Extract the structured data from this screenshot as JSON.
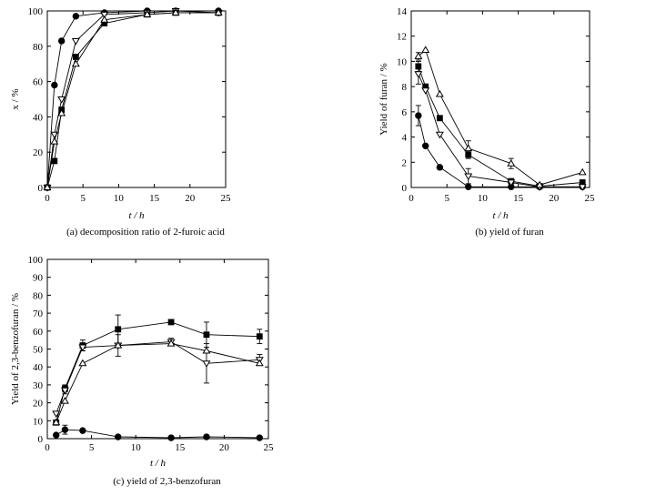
{
  "chart_data": [
    {
      "id": "a",
      "type": "line",
      "caption": "(a) decomposition ratio of 2-furoic acid",
      "xlabel": "t / h",
      "ylabel": "x / %",
      "xlim": [
        0,
        25
      ],
      "ylim": [
        0,
        100
      ],
      "xticks": [
        0,
        5,
        10,
        15,
        20,
        25
      ],
      "yticks": [
        0,
        20,
        40,
        60,
        80,
        100
      ],
      "series": [
        {
          "marker": "filled-circle",
          "x": [
            0,
            1,
            2,
            4,
            8,
            14,
            18,
            24
          ],
          "y": [
            0,
            58,
            83,
            97,
            99,
            100,
            100,
            100
          ]
        },
        {
          "marker": "open-down-triangle",
          "x": [
            0,
            1,
            2,
            4,
            8,
            14,
            18,
            24
          ],
          "y": [
            0,
            30,
            50,
            83,
            98,
            99,
            100,
            99
          ]
        },
        {
          "marker": "filled-square",
          "x": [
            0,
            1,
            2,
            4,
            8,
            14,
            18,
            24
          ],
          "y": [
            0,
            15,
            44,
            74,
            93,
            98,
            99,
            99
          ]
        },
        {
          "marker": "open-up-triangle",
          "x": [
            0,
            1,
            2,
            4,
            8,
            14,
            18,
            24
          ],
          "y": [
            0,
            26,
            42,
            70,
            95,
            98,
            99,
            99
          ]
        }
      ]
    },
    {
      "id": "b",
      "type": "line",
      "caption": "(b) yield of furan",
      "xlabel": "t / h",
      "ylabel": "Yield of furan / %",
      "xlim": [
        0,
        25
      ],
      "ylim": [
        0,
        14
      ],
      "xticks": [
        0,
        5,
        10,
        15,
        20,
        25
      ],
      "yticks": [
        0,
        2,
        4,
        6,
        8,
        10,
        12,
        14
      ],
      "series": [
        {
          "marker": "filled-circle",
          "x": [
            1,
            2,
            4,
            8,
            14,
            18,
            24
          ],
          "y": [
            5.7,
            3.3,
            1.6,
            0.05,
            0.05,
            0.05,
            0.05
          ],
          "err": [
            0.8,
            0,
            0,
            0,
            0,
            0,
            0
          ]
        },
        {
          "marker": "filled-square",
          "x": [
            1,
            2,
            4,
            8,
            14,
            18,
            24
          ],
          "y": [
            9.6,
            8.0,
            5.5,
            2.6,
            0.5,
            0.1,
            0.4
          ],
          "err": [
            0.4,
            0,
            0,
            0.3,
            0,
            0,
            0
          ]
        },
        {
          "marker": "open-down-triangle",
          "x": [
            1,
            2,
            4,
            8,
            14,
            18,
            24
          ],
          "y": [
            9.0,
            7.7,
            4.2,
            0.9,
            0.4,
            0.05,
            0.05
          ],
          "err": [
            0.8,
            0,
            0,
            0.6,
            0,
            0,
            0
          ]
        },
        {
          "marker": "open-up-triangle",
          "x": [
            1,
            2,
            4,
            8,
            14,
            18,
            24
          ],
          "y": [
            10.4,
            10.9,
            7.4,
            3.1,
            1.9,
            0.2,
            1.2
          ],
          "err": [
            0.3,
            0,
            0,
            0.6,
            0.4,
            0,
            0
          ]
        }
      ]
    },
    {
      "id": "c",
      "type": "line",
      "caption": "(c) yield of 2,3-benzofuran",
      "xlabel": "t / h",
      "ylabel": "Yield of 2,3-benzofuran / %",
      "xlim": [
        0,
        25
      ],
      "ylim": [
        0,
        100
      ],
      "xticks": [
        0,
        5,
        10,
        15,
        20,
        25
      ],
      "yticks": [
        0,
        10,
        20,
        30,
        40,
        50,
        60,
        70,
        80,
        90,
        100
      ],
      "series": [
        {
          "marker": "filled-circle",
          "x": [
            1,
            2,
            4,
            8,
            14,
            18,
            24
          ],
          "y": [
            2,
            5,
            4.5,
            1,
            0.5,
            1,
            0.5
          ],
          "err": [
            0,
            2.5,
            0,
            0,
            0,
            0,
            0
          ]
        },
        {
          "marker": "filled-square",
          "x": [
            1,
            2,
            4,
            8,
            14,
            18,
            24
          ],
          "y": [
            9,
            28,
            52,
            61,
            65,
            58,
            57
          ],
          "err": [
            0,
            2,
            3,
            8,
            0,
            7,
            4
          ]
        },
        {
          "marker": "open-down-triangle",
          "x": [
            1,
            2,
            4,
            8,
            14,
            18,
            24
          ],
          "y": [
            14,
            27,
            51,
            52,
            54,
            42,
            44
          ],
          "err": [
            0,
            2,
            2,
            6,
            2,
            11,
            3
          ]
        },
        {
          "marker": "open-up-triangle",
          "x": [
            1,
            2,
            4,
            8,
            14,
            18,
            24
          ],
          "y": [
            9,
            21,
            42,
            52,
            53,
            49,
            42
          ],
          "err": [
            0,
            0,
            0,
            0,
            0,
            0,
            0
          ]
        }
      ]
    }
  ]
}
